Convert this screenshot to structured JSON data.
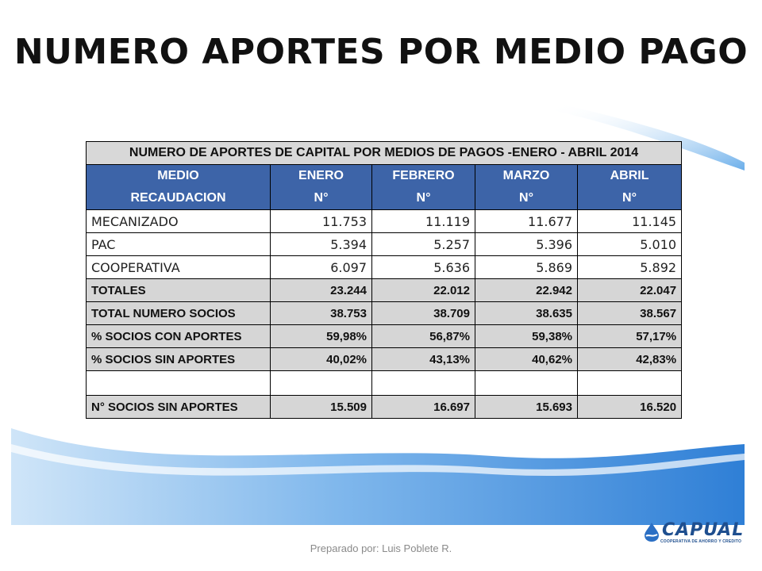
{
  "title": "NUMERO APORTES POR MEDIO PAGO",
  "table": {
    "caption": "NUMERO DE APORTES DE CAPITAL POR MEDIOS DE PAGOS -ENERO - ABRIL 2014",
    "header_row1": [
      "MEDIO",
      "ENERO",
      "FEBRERO",
      "MARZO",
      "ABRIL"
    ],
    "header_row2": [
      "RECAUDACION",
      "N°",
      "N°",
      "N°",
      "N°"
    ],
    "rows": [
      {
        "label": "MECANIZADO",
        "values": [
          "11.753",
          "11.119",
          "11.677",
          "11.145"
        ]
      },
      {
        "label": "PAC",
        "values": [
          "5.394",
          "5.257",
          "5.396",
          "5.010"
        ]
      },
      {
        "label": "COOPERATIVA",
        "values": [
          "6.097",
          "5.636",
          "5.869",
          "5.892"
        ]
      },
      {
        "label": "TOTALES",
        "values": [
          "23.244",
          "22.012",
          "22.942",
          "22.047"
        ]
      },
      {
        "label": "TOTAL NUMERO SOCIOS",
        "values": [
          "38.753",
          "38.709",
          "38.635",
          "38.567"
        ]
      },
      {
        "label": "% SOCIOS CON APORTES",
        "values": [
          "59,98%",
          "56,87%",
          "59,38%",
          "57,17%"
        ]
      },
      {
        "label": "% SOCIOS SIN APORTES",
        "values": [
          "40,02%",
          "43,13%",
          "40,62%",
          "42,83%"
        ]
      },
      {
        "label": "N° SOCIOS SIN APORTES",
        "values": [
          "15.509",
          "16.697",
          "15.693",
          "16.520"
        ]
      }
    ]
  },
  "footer": "Preparado por: Luis Poblete R.",
  "logo": {
    "name": "CAPUAL",
    "tagline": "COOPERATIVA DE AHORRO Y CREDITO"
  },
  "colors": {
    "header_blue": "#3d64a8",
    "grey_row": "#d6d6d6",
    "wave_blue": "#4f97de"
  }
}
